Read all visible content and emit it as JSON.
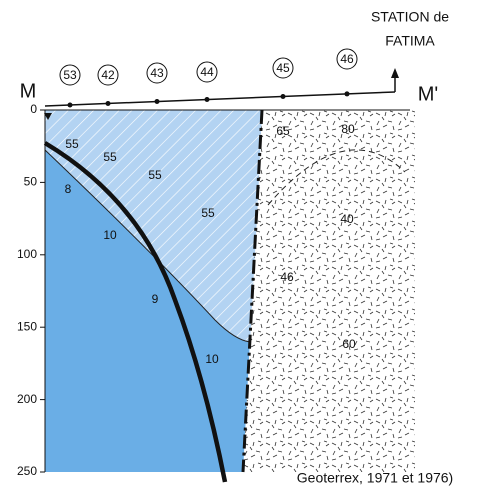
{
  "header": {
    "station": [
      "STATION de",
      "FATIMA"
    ]
  },
  "profile": {
    "start": "M",
    "end": "M'",
    "stations": [
      53,
      42,
      43,
      44,
      45,
      46
    ]
  },
  "depth_axis": {
    "ticks": [
      0,
      50,
      100,
      150,
      200,
      250
    ]
  },
  "zones": {
    "labels": [
      55,
      55,
      55,
      55,
      8,
      10,
      9,
      10,
      65,
      80,
      40,
      46,
      60
    ]
  },
  "caption": "Geoterrex, 1971 et 1976)"
}
